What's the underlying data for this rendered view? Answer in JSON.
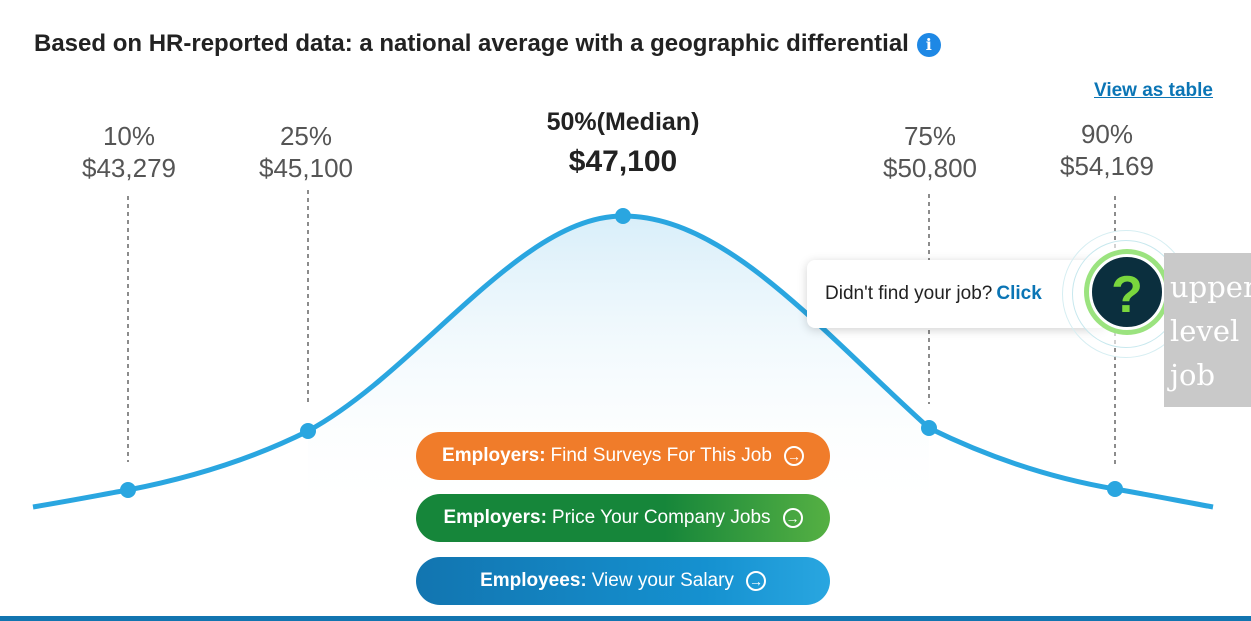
{
  "header": {
    "title": "Based on HR-reported data: a national average with a geographic differential",
    "info_icon": "i",
    "view_table_link": "View as table"
  },
  "percentiles": [
    {
      "label": "10%",
      "value": "$43,279"
    },
    {
      "label": "25%",
      "value": "$45,100"
    },
    {
      "label": "50%(Median)",
      "value": "$47,100"
    },
    {
      "label": "75%",
      "value": "$50,800"
    },
    {
      "label": "90%",
      "value": "$54,169"
    }
  ],
  "buttons": {
    "employers_surveys": {
      "bold": "Employers:",
      "text": "Find Surveys For This Job"
    },
    "employers_price": {
      "bold": "Employers:",
      "text": "Price Your Company Jobs"
    },
    "employees_salary": {
      "bold": "Employees:",
      "text": "View your Salary"
    }
  },
  "popup": {
    "text": "Didn't find your job?",
    "link": "Click"
  },
  "help_button": {
    "icon": "question-mark-icon",
    "symbol": "?"
  },
  "side_tag": {
    "lines": [
      "upper",
      "level",
      "job"
    ]
  },
  "colors": {
    "curve": "#2aa6e0",
    "orange": "#f07c2a",
    "green": "#16863a",
    "blue": "#1275b0",
    "link": "#0b75b5"
  }
}
